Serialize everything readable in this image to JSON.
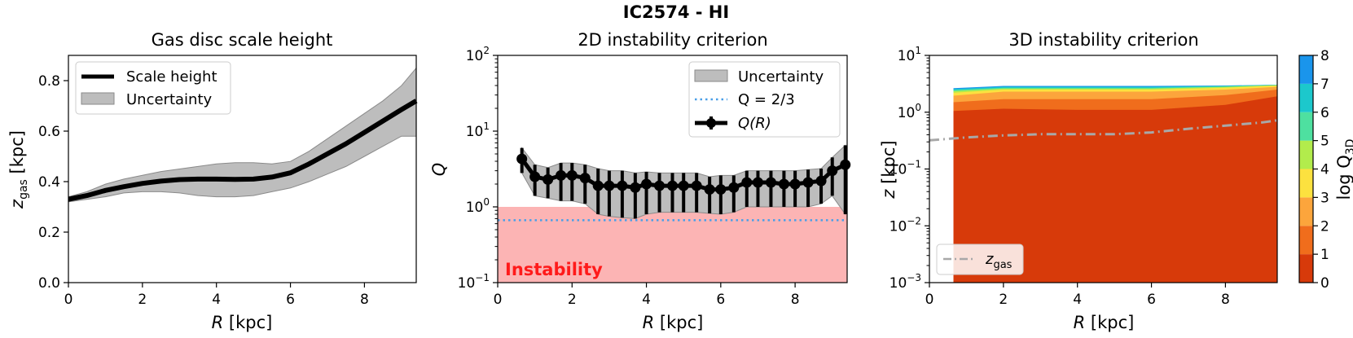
{
  "figure": {
    "suptitle": "IC2574 - HI"
  },
  "chart_data": [
    {
      "type": "line",
      "title": "Gas disc scale height",
      "xlabel_italic": "R",
      "xlabel_rest": " [kpc]",
      "ylabel_main": "z",
      "ylabel_sub": "gas",
      "ylabel_rest": " [kpc]",
      "xlim": [
        0,
        9.4
      ],
      "ylim": [
        0,
        0.9
      ],
      "xticks": [
        "0",
        "2",
        "4",
        "6",
        "8"
      ],
      "yticks": [
        "0.0",
        "0.2",
        "0.4",
        "0.6",
        "0.8"
      ],
      "legend": {
        "placement": "upper-left",
        "line_label": "Scale height",
        "band_label": "Uncertainty"
      },
      "series": [
        {
          "name": "Scale height",
          "x": [
            0,
            0.5,
            1,
            1.5,
            2,
            2.5,
            3,
            3.5,
            4,
            4.5,
            5,
            5.5,
            6,
            6.5,
            7,
            7.5,
            8,
            8.5,
            9,
            9.4
          ],
          "y": [
            0.33,
            0.345,
            0.365,
            0.38,
            0.393,
            0.402,
            0.408,
            0.41,
            0.41,
            0.409,
            0.41,
            0.418,
            0.435,
            0.47,
            0.51,
            0.55,
            0.595,
            0.64,
            0.685,
            0.72
          ],
          "lower": [
            0.32,
            0.33,
            0.34,
            0.355,
            0.36,
            0.36,
            0.355,
            0.345,
            0.34,
            0.34,
            0.345,
            0.36,
            0.375,
            0.4,
            0.43,
            0.46,
            0.5,
            0.54,
            0.58,
            0.58
          ],
          "upper": [
            0.34,
            0.36,
            0.39,
            0.41,
            0.425,
            0.44,
            0.45,
            0.46,
            0.47,
            0.475,
            0.475,
            0.47,
            0.48,
            0.52,
            0.57,
            0.62,
            0.67,
            0.72,
            0.78,
            0.85
          ]
        }
      ]
    },
    {
      "type": "line",
      "title": "2D instability criterion",
      "xlabel_italic": "R",
      "xlabel_rest": " [kpc]",
      "ylabel": "Q",
      "yscale": "log",
      "xlim": [
        0,
        9.4
      ],
      "ylim": [
        0.1,
        100
      ],
      "xticks": [
        "0",
        "2",
        "4",
        "6",
        "8"
      ],
      "ytick_base": "10",
      "ytick_exponents": [
        "−1",
        "0",
        "1",
        "2"
      ],
      "threshold": {
        "value": 0.6667,
        "label": "Q = 2/3"
      },
      "instability_region": {
        "ymax": 1,
        "label": "Instability"
      },
      "legend": {
        "placement": "upper-right",
        "band_label": "Uncertainty",
        "threshold_label": "Q = 2/3",
        "points_label": "Q(R)"
      },
      "series": [
        {
          "name": "Q(R)",
          "x": [
            0.65,
            1.0,
            1.35,
            1.7,
            2.0,
            2.35,
            2.7,
            3.0,
            3.35,
            3.7,
            4.0,
            4.35,
            4.7,
            5.0,
            5.35,
            5.7,
            6.0,
            6.35,
            6.7,
            7.0,
            7.35,
            7.7,
            8.0,
            8.35,
            8.7,
            9.0,
            9.35
          ],
          "y": [
            4.3,
            2.5,
            2.3,
            2.6,
            2.6,
            2.4,
            1.9,
            1.9,
            1.9,
            1.8,
            2.0,
            1.9,
            1.9,
            1.9,
            1.9,
            1.7,
            1.7,
            1.8,
            2.1,
            2.1,
            2.1,
            2.0,
            2.0,
            2.1,
            2.2,
            3.0,
            3.6
          ],
          "lower": [
            2.8,
            1.4,
            1.3,
            1.2,
            1.2,
            1.1,
            0.8,
            0.75,
            0.72,
            0.7,
            0.8,
            0.85,
            0.85,
            0.85,
            0.85,
            0.82,
            0.8,
            0.85,
            1.0,
            1.0,
            1.0,
            1.0,
            1.0,
            1.0,
            1.1,
            1.4,
            0.8
          ],
          "upper": [
            6.0,
            3.6,
            3.3,
            3.8,
            3.8,
            3.6,
            3.2,
            3.0,
            3.0,
            2.8,
            2.9,
            2.8,
            2.8,
            2.8,
            2.8,
            2.5,
            2.6,
            2.6,
            3.0,
            3.0,
            3.0,
            3.0,
            3.0,
            3.1,
            3.2,
            4.5,
            6.5
          ]
        }
      ]
    },
    {
      "type": "heatmap",
      "title": "3D instability criterion",
      "xlabel_italic": "R",
      "xlabel_rest": " [kpc]",
      "ylabel_italic": "z",
      "ylabel_rest": " [kpc]",
      "yscale": "log",
      "xlim": [
        0,
        9.4
      ],
      "ylim": [
        0.001,
        10
      ],
      "xticks": [
        "0",
        "2",
        "4",
        "6",
        "8"
      ],
      "ytick_base": "10",
      "ytick_exponents": [
        "−3",
        "−2",
        "−1",
        "0",
        "1"
      ],
      "data_xrange": [
        0.65,
        9.4
      ],
      "levels": [
        0,
        1,
        2,
        3,
        4,
        5,
        6,
        7,
        8
      ],
      "level_colors": [
        "#d73a0a",
        "#f06d1c",
        "#fca53c",
        "#fce13f",
        "#b2ec4c",
        "#4ee0a0",
        "#1cc8cc",
        "#1a95ec"
      ],
      "contour_tops": {
        "x": [
          0.65,
          2,
          4,
          6,
          8,
          9.4
        ],
        "level_1": [
          1.05,
          1.15,
          1.1,
          1.1,
          1.35,
          1.9
        ],
        "level_2": [
          1.5,
          1.7,
          1.7,
          1.7,
          2.0,
          2.5
        ],
        "level_3": [
          1.95,
          2.3,
          2.3,
          2.3,
          2.5,
          2.8
        ],
        "level_4": [
          2.2,
          2.5,
          2.5,
          2.5,
          2.7,
          2.95
        ],
        "level_5": [
          2.35,
          2.6,
          2.6,
          2.6,
          2.8,
          3.0
        ],
        "level_6": [
          2.45,
          2.7,
          2.7,
          2.7,
          2.85,
          3.0
        ],
        "level_7": [
          2.55,
          2.8,
          2.8,
          2.8,
          2.9,
          3.05
        ],
        "level_8": [
          2.65,
          2.9,
          2.9,
          2.9,
          2.95,
          3.05
        ]
      },
      "zgas_line": {
        "x": [
          0,
          1,
          2,
          3,
          4,
          5,
          6,
          7,
          8,
          9,
          9.4
        ],
        "y": [
          0.32,
          0.36,
          0.39,
          0.41,
          0.41,
          0.41,
          0.44,
          0.51,
          0.58,
          0.66,
          0.72
        ]
      },
      "legend": {
        "placement": "lower-left",
        "line_label_main": "z",
        "line_label_sub": "gas"
      },
      "colorbar": {
        "label_main": "log Q",
        "label_sub": "3D",
        "ticks": [
          "0",
          "1",
          "2",
          "3",
          "4",
          "5",
          "6",
          "7",
          "8"
        ]
      }
    }
  ]
}
